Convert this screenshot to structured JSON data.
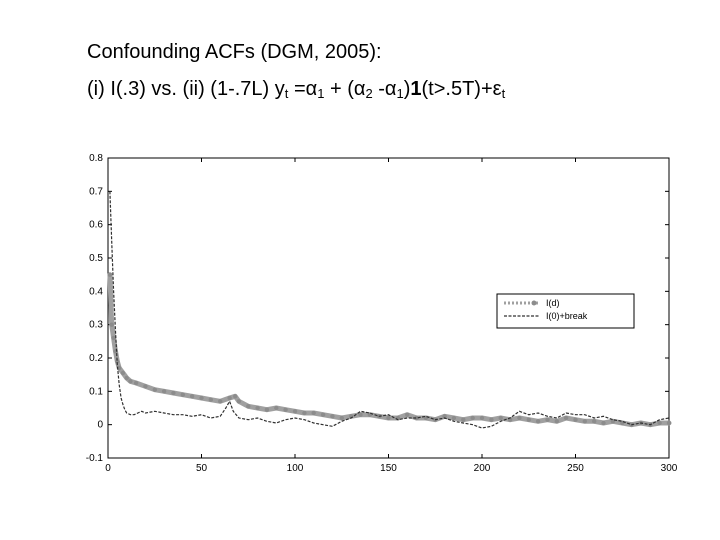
{
  "slide": {
    "title_line1": "Confounding ACFs (DGM, 2005):",
    "title_line2_parts": {
      "a": "(i) I(.3) vs. (ii) (1-.7L) y",
      "a_sub": "t",
      "b": " =α",
      "b_sub": "1",
      "c": " + (α",
      "c_sub": "2",
      "d": " -α",
      "d_sub": "1",
      "e": ")",
      "bold": "1",
      "f": "(t>.5T)+ε",
      "f_sub": "t"
    }
  },
  "chart_data": {
    "type": "line",
    "title": "",
    "xlabel": "",
    "ylabel": "",
    "xlim": [
      0,
      300
    ],
    "ylim": [
      -0.1,
      0.8
    ],
    "x_ticks": [
      "0",
      "50",
      "100",
      "150",
      "200",
      "250",
      "300"
    ],
    "y_ticks": [
      "-0.1",
      "0",
      "0.1",
      "0.2",
      "0.3",
      "0.4",
      "0.5",
      "0.6",
      "0.7",
      "0.8"
    ],
    "grid": false,
    "legend_position": "right",
    "series": [
      {
        "name": "I(d)",
        "color": "#a0a0a0",
        "x": [
          1,
          2,
          3,
          4,
          5,
          6,
          8,
          10,
          12,
          15,
          20,
          25,
          30,
          35,
          40,
          45,
          50,
          55,
          60,
          65,
          68,
          70,
          75,
          80,
          85,
          90,
          95,
          100,
          105,
          110,
          115,
          120,
          125,
          130,
          135,
          140,
          145,
          150,
          155,
          160,
          165,
          170,
          175,
          180,
          185,
          190,
          195,
          200,
          205,
          210,
          215,
          220,
          225,
          230,
          235,
          240,
          245,
          250,
          255,
          260,
          265,
          270,
          275,
          280,
          285,
          290,
          295,
          300
        ],
        "y": [
          0.45,
          0.3,
          0.26,
          0.22,
          0.19,
          0.17,
          0.155,
          0.14,
          0.13,
          0.125,
          0.115,
          0.105,
          0.1,
          0.095,
          0.09,
          0.085,
          0.08,
          0.075,
          0.07,
          0.08,
          0.085,
          0.07,
          0.055,
          0.05,
          0.045,
          0.05,
          0.045,
          0.04,
          0.035,
          0.035,
          0.03,
          0.025,
          0.02,
          0.025,
          0.03,
          0.03,
          0.025,
          0.02,
          0.02,
          0.03,
          0.02,
          0.02,
          0.015,
          0.025,
          0.02,
          0.015,
          0.02,
          0.02,
          0.015,
          0.02,
          0.015,
          0.02,
          0.015,
          0.01,
          0.015,
          0.01,
          0.02,
          0.015,
          0.01,
          0.01,
          0.005,
          0.01,
          0.005,
          0.0,
          0.005,
          0.0,
          0.005,
          0.005
        ]
      },
      {
        "name": "I(0)+break",
        "color": "#303030",
        "x": [
          1,
          2,
          3,
          4,
          5,
          6,
          7,
          8,
          9,
          10,
          12,
          14,
          16,
          18,
          20,
          25,
          30,
          35,
          40,
          45,
          50,
          55,
          60,
          63,
          65,
          67,
          70,
          75,
          80,
          85,
          90,
          95,
          100,
          105,
          110,
          115,
          120,
          125,
          130,
          135,
          140,
          145,
          150,
          155,
          160,
          165,
          170,
          175,
          180,
          185,
          190,
          195,
          200,
          205,
          210,
          215,
          220,
          225,
          230,
          235,
          240,
          245,
          250,
          255,
          260,
          265,
          270,
          275,
          280,
          285,
          290,
          295,
          300
        ],
        "y": [
          0.7,
          0.55,
          0.4,
          0.28,
          0.18,
          0.12,
          0.08,
          0.06,
          0.045,
          0.035,
          0.03,
          0.03,
          0.035,
          0.04,
          0.035,
          0.04,
          0.035,
          0.03,
          0.03,
          0.025,
          0.03,
          0.02,
          0.025,
          0.05,
          0.07,
          0.04,
          0.02,
          0.015,
          0.02,
          0.01,
          0.005,
          0.015,
          0.02,
          0.015,
          0.005,
          0.0,
          -0.005,
          0.01,
          0.02,
          0.04,
          0.035,
          0.025,
          0.03,
          0.015,
          0.02,
          0.02,
          0.025,
          0.015,
          0.02,
          0.01,
          0.005,
          0.0,
          -0.01,
          -0.005,
          0.01,
          0.02,
          0.04,
          0.03,
          0.035,
          0.025,
          0.02,
          0.035,
          0.03,
          0.03,
          0.02,
          0.025,
          0.015,
          0.01,
          0.0,
          0.005,
          0.0,
          0.015,
          0.02
        ]
      }
    ]
  }
}
